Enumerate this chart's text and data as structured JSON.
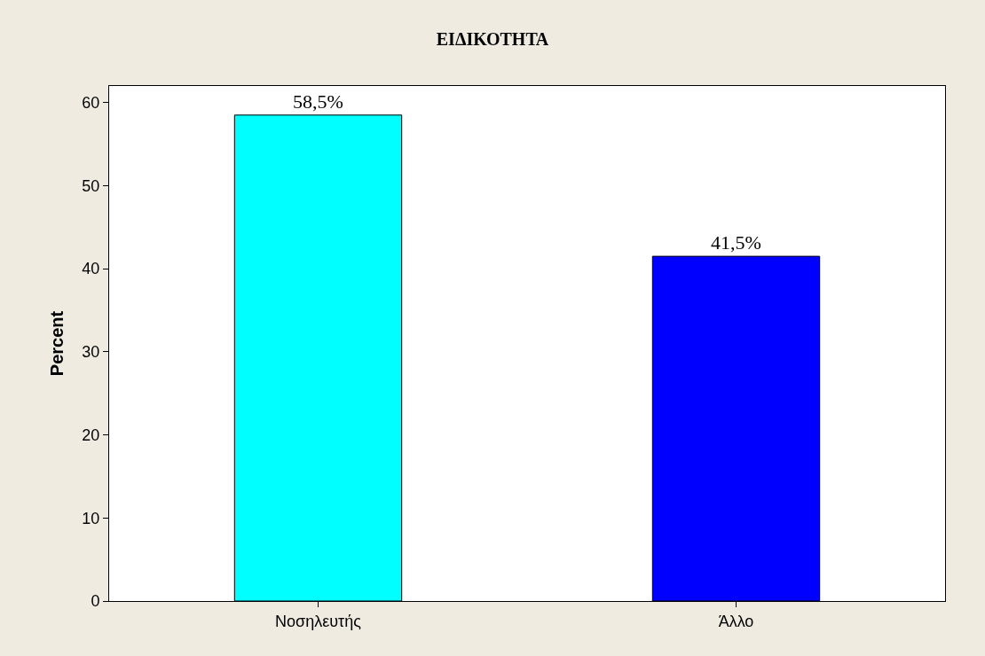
{
  "chart_data": {
    "type": "bar",
    "title": "ΕΙΔΙΚΟΤΗΤΑ",
    "ylabel": "Percent",
    "categories": [
      "Νοσηλευτής",
      "Άλλο"
    ],
    "values": [
      58.5,
      41.5
    ],
    "colors": [
      "#00ffff",
      "#0000ff"
    ],
    "value_labels": [
      "58,5%",
      "41,5%"
    ],
    "ylim": [
      0,
      62
    ],
    "yticks": [
      0,
      10,
      20,
      30,
      40,
      50,
      60
    ],
    "grid": false
  }
}
